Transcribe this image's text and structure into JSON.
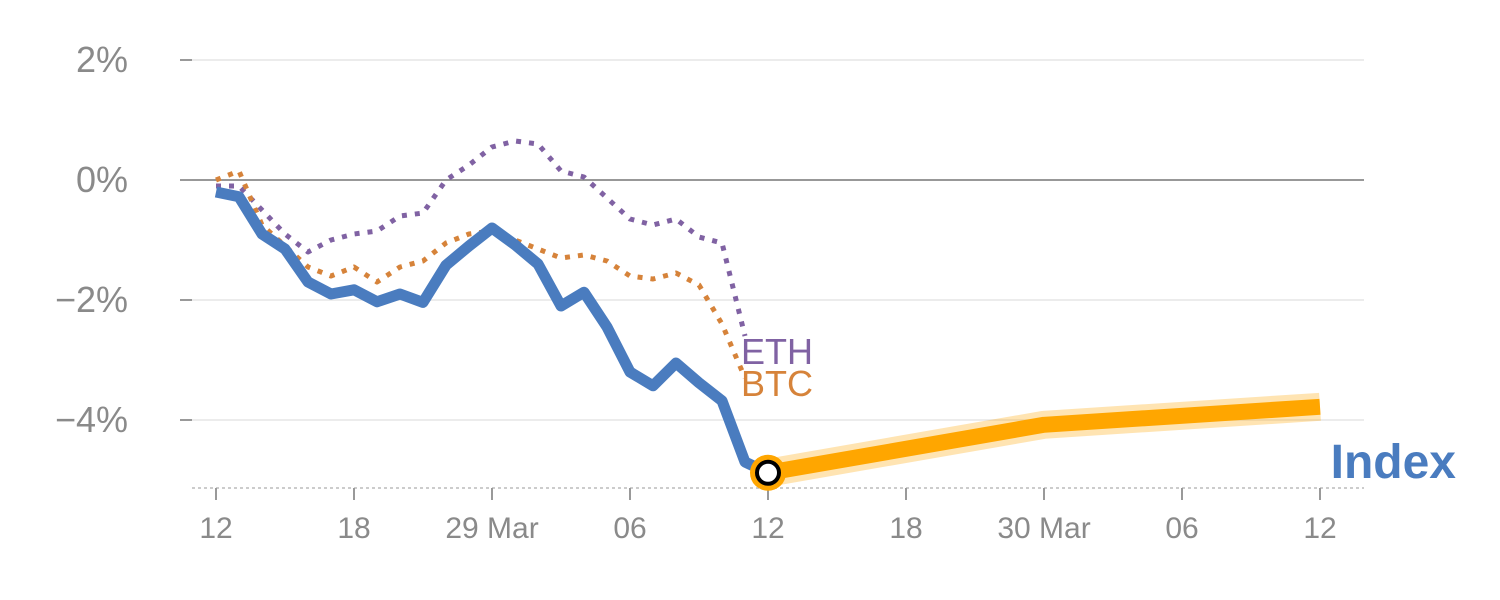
{
  "chart_data": {
    "type": "line",
    "title": "",
    "xlabel": "",
    "ylabel": "",
    "ylim": [
      -5.1,
      2.4
    ],
    "y_ticks": [
      {
        "value": 2,
        "label": "2%"
      },
      {
        "value": 0,
        "label": "0%"
      },
      {
        "value": -2,
        "label": "−2%"
      },
      {
        "value": -4,
        "label": "−4%"
      }
    ],
    "x_ticks": [
      {
        "x": 0,
        "label": "12"
      },
      {
        "x": 6,
        "label": "18"
      },
      {
        "x": 12,
        "label": "29 Mar"
      },
      {
        "x": 18,
        "label": "06"
      },
      {
        "x": 24,
        "label": "12"
      },
      {
        "x": 30,
        "label": "18"
      },
      {
        "x": 36,
        "label": "30 Mar"
      },
      {
        "x": 42,
        "label": "06"
      },
      {
        "x": 48,
        "label": "12"
      }
    ],
    "series": [
      {
        "name": "ETH",
        "label": "ETH",
        "color": "#8062a3",
        "style": "dotted",
        "x": [
          0,
          1,
          2,
          3,
          4,
          5,
          6,
          7,
          8,
          9,
          10,
          11,
          12,
          13,
          14,
          15,
          16,
          17,
          18,
          19,
          20,
          21,
          22,
          23
        ],
        "values": [
          -0.1,
          -0.1,
          -0.5,
          -0.9,
          -1.2,
          -1.0,
          -0.9,
          -0.85,
          -0.6,
          -0.55,
          0.0,
          0.25,
          0.55,
          0.65,
          0.6,
          0.15,
          0.05,
          -0.3,
          -0.65,
          -0.75,
          -0.65,
          -0.95,
          -1.05,
          -2.6
        ]
      },
      {
        "name": "BTC",
        "label": "BTC",
        "color": "#d6833a",
        "style": "dotted",
        "x": [
          0,
          1,
          2,
          3,
          4,
          5,
          6,
          7,
          8,
          9,
          10,
          11,
          12,
          13,
          14,
          15,
          16,
          17,
          18,
          19,
          20,
          21,
          22,
          23
        ],
        "values": [
          0.0,
          0.15,
          -0.75,
          -1.1,
          -1.45,
          -1.6,
          -1.45,
          -1.7,
          -1.45,
          -1.35,
          -1.05,
          -0.9,
          -0.85,
          -1.0,
          -1.15,
          -1.3,
          -1.25,
          -1.35,
          -1.6,
          -1.65,
          -1.55,
          -1.75,
          -2.4,
          -3.3
        ]
      },
      {
        "name": "Index",
        "label": "Index",
        "color": "#4a7cbf",
        "style": "solid",
        "x": [
          0,
          1,
          2,
          3,
          4,
          5,
          6,
          7,
          8,
          9,
          10,
          11,
          12,
          13,
          14,
          15,
          16,
          17,
          18,
          19,
          20,
          21,
          22,
          23,
          24
        ],
        "values": [
          -0.2,
          -0.28,
          -0.9,
          -1.15,
          -1.7,
          -1.9,
          -1.83,
          -2.03,
          -1.9,
          -2.04,
          -1.42,
          -1.1,
          -0.8,
          -1.08,
          -1.4,
          -2.1,
          -1.87,
          -2.45,
          -3.2,
          -3.43,
          -3.05,
          -3.38,
          -3.68,
          -4.7,
          -4.88
        ]
      }
    ],
    "forecast": {
      "name": "Index forecast",
      "color": "#ffa600",
      "x": [
        24,
        36,
        48
      ],
      "values": [
        -4.88,
        -4.08,
        -3.78
      ]
    },
    "highlight_point": {
      "x": 24,
      "value": -4.88
    }
  }
}
